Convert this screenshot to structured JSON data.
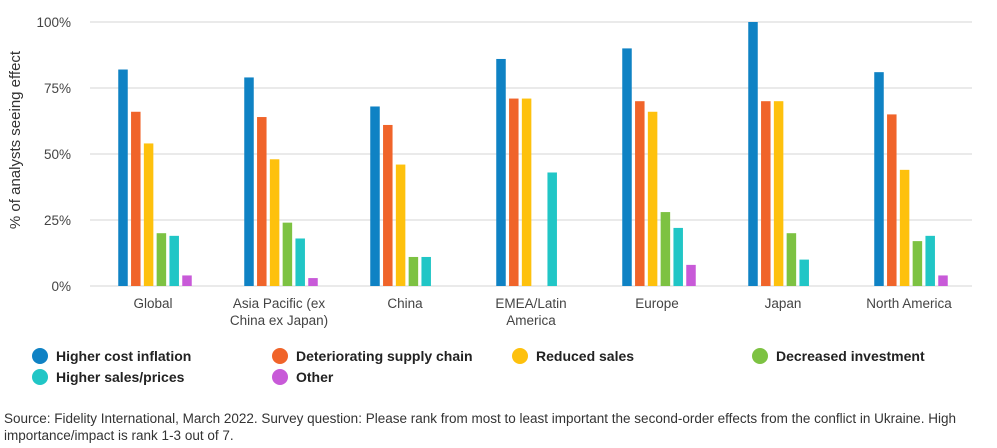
{
  "chart_data": {
    "type": "bar",
    "ylabel": "% of analysts seeing effect",
    "ylim": [
      0,
      100
    ],
    "yticks": [
      0,
      25,
      50,
      75,
      100
    ],
    "ytick_labels": [
      "0%",
      "25%",
      "50%",
      "75%",
      "100%"
    ],
    "grid": true,
    "legend_position": "bottom",
    "categories": [
      "Global",
      "Asia Pacific (ex China ex Japan)",
      "China",
      "EMEA/Latin America",
      "Europe",
      "Japan",
      "North America"
    ],
    "category_labels": [
      [
        "Global"
      ],
      [
        "Asia Pacific (ex",
        "China ex Japan)"
      ],
      [
        "China"
      ],
      [
        "EMEA/Latin",
        "America"
      ],
      [
        "Europe"
      ],
      [
        "Japan"
      ],
      [
        "North America"
      ]
    ],
    "series": [
      {
        "name": "Higher cost inflation",
        "color": "#0f82c4",
        "values": [
          82,
          79,
          68,
          86,
          90,
          100,
          81
        ]
      },
      {
        "name": "Deteriorating supply chain",
        "color": "#f0642a",
        "values": [
          66,
          64,
          61,
          71,
          70,
          70,
          65
        ]
      },
      {
        "name": "Reduced sales",
        "color": "#fec10d",
        "values": [
          54,
          48,
          46,
          71,
          66,
          70,
          44
        ]
      },
      {
        "name": "Decreased investment",
        "color": "#7dc242",
        "values": [
          20,
          24,
          11,
          0,
          28,
          20,
          17
        ]
      },
      {
        "name": "Higher sales/prices",
        "color": "#21c6c6",
        "values": [
          19,
          18,
          11,
          43,
          22,
          10,
          19
        ]
      },
      {
        "name": "Other",
        "color": "#c85ad8",
        "values": [
          4,
          3,
          0,
          0,
          8,
          0,
          4
        ]
      }
    ]
  },
  "footnote": "Source: Fidelity International, March 2022. Survey question: Please rank from most to least important the second-order effects from the conflict in Ukraine. High importance/impact is rank 1-3 out of 7."
}
